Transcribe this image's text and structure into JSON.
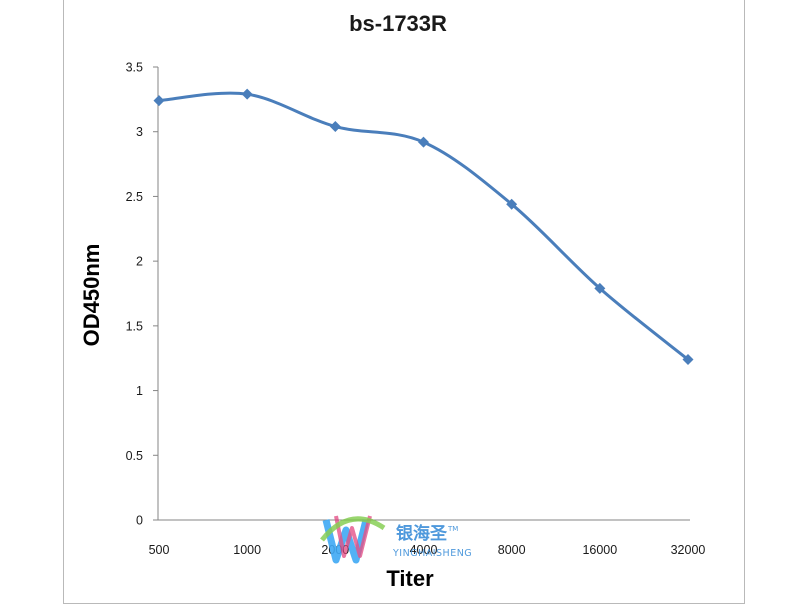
{
  "chart_data": {
    "type": "line",
    "title": "bs-1733R",
    "xlabel": "Titer",
    "ylabel": "OD450nm",
    "categories": [
      "500",
      "1000",
      "2000",
      "4000",
      "8000",
      "16000",
      "32000"
    ],
    "series": [
      {
        "values": [
          3.24,
          3.29,
          3.04,
          2.92,
          2.44,
          1.79,
          1.24
        ],
        "color": "#4a7ebb"
      }
    ],
    "yticks": [
      "0",
      "0.5",
      "1",
      "1.5",
      "2",
      "2.5",
      "3",
      "3.5"
    ],
    "ylim": [
      0,
      3.5
    ],
    "grid": false,
    "marker": "diamond",
    "smooth": true
  },
  "watermark": {
    "brand_cn": "银海圣",
    "brand_en": "YINGHAISHENG",
    "tm": "TM"
  }
}
